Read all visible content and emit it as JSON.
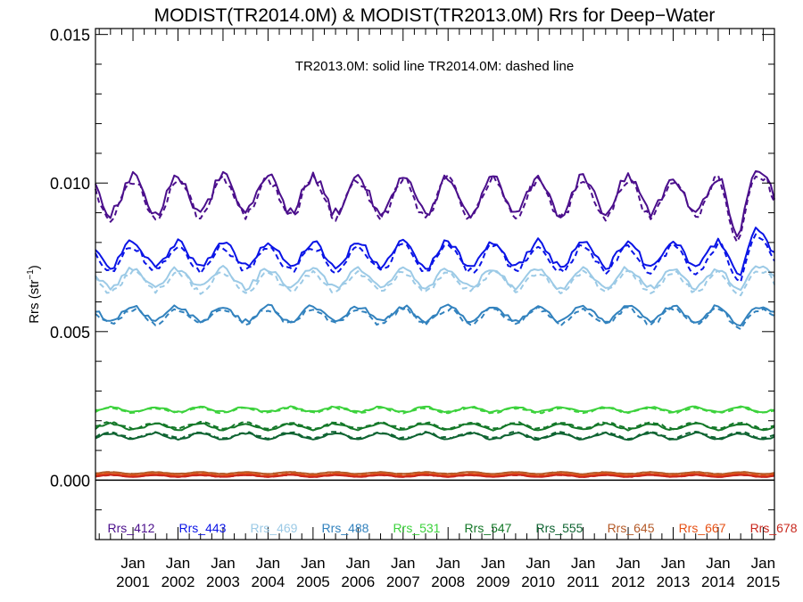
{
  "chart_data": {
    "type": "line",
    "title": "MODIST(TR2014.0M) & MODIST(TR2013.0M)  Rrs for Deep−Water",
    "annotation": "TR2013.0M: solid line   TR2014.0M: dashed line",
    "ylabel_main": "Rrs (str",
    "ylabel_sup": "−1",
    "ylabel_close": ")",
    "xlabel": "",
    "x_start": "2000-03",
    "x_end": "2015-04",
    "ylim": [
      -0.002,
      0.0152
    ],
    "y_ticks": [
      "0.000",
      "0.005",
      "0.010",
      "0.015"
    ],
    "y_tick_values": [
      0.0,
      0.005,
      0.01,
      0.015
    ],
    "x_ticks": [
      {
        "date": "2001-01",
        "month": "Jan",
        "year": "2001"
      },
      {
        "date": "2002-01",
        "month": "Jan",
        "year": "2002"
      },
      {
        "date": "2003-01",
        "month": "Jan",
        "year": "2003"
      },
      {
        "date": "2004-01",
        "month": "Jan",
        "year": "2004"
      },
      {
        "date": "2005-01",
        "month": "Jan",
        "year": "2005"
      },
      {
        "date": "2006-01",
        "month": "Jan",
        "year": "2006"
      },
      {
        "date": "2007-01",
        "month": "Jan",
        "year": "2007"
      },
      {
        "date": "2008-01",
        "month": "Jan",
        "year": "2008"
      },
      {
        "date": "2009-01",
        "month": "Jan",
        "year": "2009"
      },
      {
        "date": "2010-01",
        "month": "Jan",
        "year": "2010"
      },
      {
        "date": "2011-01",
        "month": "Jan",
        "year": "2011"
      },
      {
        "date": "2012-01",
        "month": "Jan",
        "year": "2012"
      },
      {
        "date": "2013-01",
        "month": "Jan",
        "year": "2013"
      },
      {
        "date": "2014-01",
        "month": "Jan",
        "year": "2014"
      },
      {
        "date": "2015-01",
        "month": "Jan",
        "year": "2015"
      }
    ],
    "grid": false,
    "legend_placement": "bottom",
    "zero_line": 0.0,
    "series": [
      {
        "name": "Rrs_412",
        "color": "#4B0F8C",
        "mean": 0.0096,
        "amplitude": 0.00062,
        "phase_month": 12,
        "noise": 0.00018,
        "dashed_offset": -0.00012,
        "events": [
          {
            "date": "2014-06",
            "value": 0.0082
          },
          {
            "date": "2014-11",
            "value": 0.0104
          }
        ]
      },
      {
        "name": "Rrs_443",
        "color": "#0A14E6",
        "mean": 0.0076,
        "amplitude": 0.00042,
        "phase_month": 12,
        "noise": 0.00012,
        "dashed_offset": -0.00015,
        "events": [
          {
            "date": "2014-07",
            "value": 0.0069
          },
          {
            "date": "2014-11",
            "value": 0.0085
          }
        ]
      },
      {
        "name": "Rrs_469",
        "color": "#9CCAE6",
        "mean": 0.0068,
        "amplitude": 0.00032,
        "phase_month": 12,
        "noise": 0.0001,
        "dashed_offset": -0.00012,
        "events": [
          {
            "date": "2014-07",
            "value": 0.0064
          },
          {
            "date": "2014-11",
            "value": 0.0072
          }
        ]
      },
      {
        "name": "Rrs_488",
        "color": "#3282BE",
        "mean": 0.0056,
        "amplitude": 0.00025,
        "phase_month": 12,
        "noise": 8e-05,
        "dashed_offset": -8e-05,
        "events": [
          {
            "date": "2014-07",
            "value": 0.0052
          },
          {
            "date": "2014-11",
            "value": 0.0058
          }
        ]
      },
      {
        "name": "Rrs_531",
        "color": "#3CD23C",
        "mean": 0.00238,
        "amplitude": 8e-05,
        "phase_month": 6,
        "noise": 3e-05,
        "dashed_offset": -3e-05,
        "events": []
      },
      {
        "name": "Rrs_547",
        "color": "#147828",
        "mean": 0.0018,
        "amplitude": 0.0001,
        "phase_month": 6,
        "noise": 3e-05,
        "dashed_offset": 4e-05,
        "events": []
      },
      {
        "name": "Rrs_555",
        "color": "#0F6432",
        "mean": 0.00148,
        "amplitude": 0.0001,
        "phase_month": 6,
        "noise": 3e-05,
        "dashed_offset": 3e-05,
        "events": []
      },
      {
        "name": "Rrs_645",
        "color": "#B45A28",
        "mean": 0.00024,
        "amplitude": 3e-05,
        "phase_month": 6,
        "noise": 1e-05,
        "dashed_offset": 0.0,
        "events": []
      },
      {
        "name": "Rrs_667",
        "color": "#E65014",
        "mean": 0.00018,
        "amplitude": 3e-05,
        "phase_month": 6,
        "noise": 1e-05,
        "dashed_offset": 0.0,
        "events": []
      },
      {
        "name": "Rrs_678",
        "color": "#C8281E",
        "mean": 0.00014,
        "amplitude": 3e-05,
        "phase_month": 6,
        "noise": 1e-05,
        "dashed_offset": 0.0,
        "events": []
      }
    ]
  }
}
